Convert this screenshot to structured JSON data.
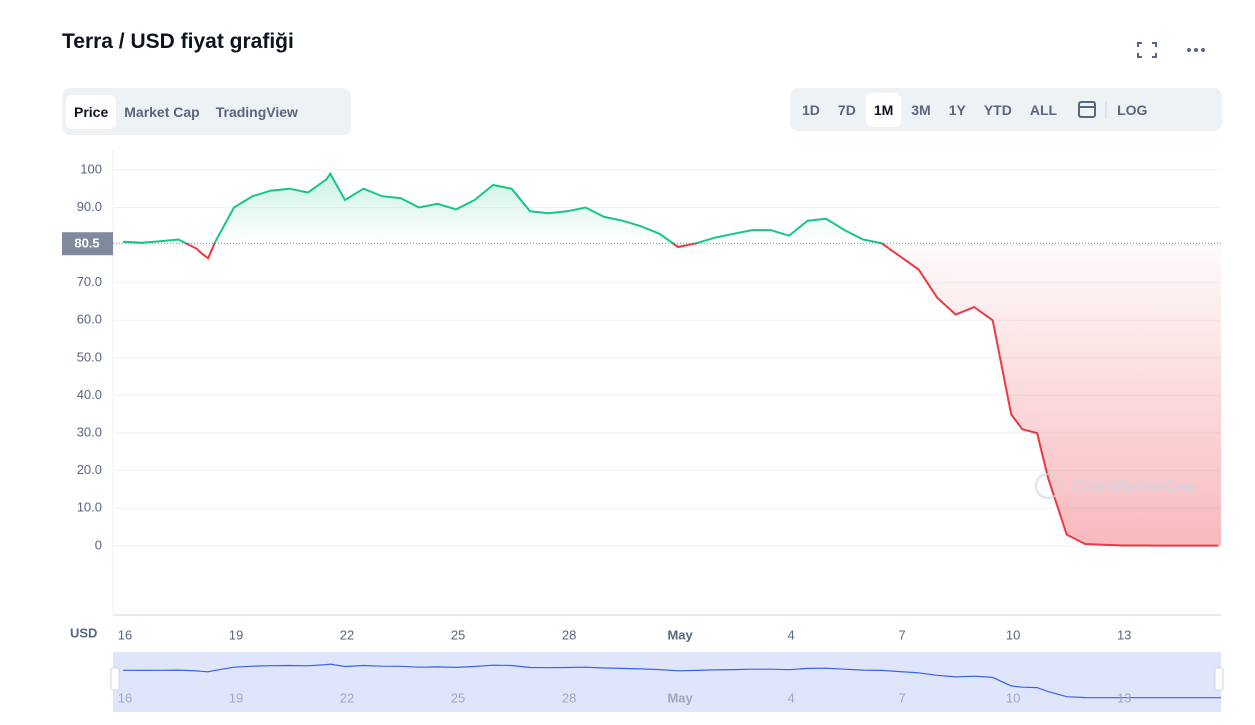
{
  "ui": {
    "title": "Terra / USD fiyat grafiği",
    "tabs": [
      "Price",
      "Market Cap",
      "TradingView"
    ],
    "ranges": [
      "1D",
      "7D",
      "1M",
      "3M",
      "1Y",
      "YTD",
      "ALL"
    ],
    "active_range": "1M",
    "log_button": "LOG",
    "currency": "USD",
    "watermark": "CoinMarketCap"
  },
  "chart_data": {
    "type": "line",
    "reference": 80.5,
    "color_up": "#16c784",
    "color_down": "#ea3943",
    "x": [
      0,
      0.5,
      1,
      1.5,
      2,
      2.1,
      2.3,
      2.5,
      3,
      3.5,
      4,
      4.5,
      5,
      5.5,
      5.6,
      6,
      6.5,
      7,
      7.5,
      8,
      8.5,
      9,
      9.5,
      10,
      10.5,
      11,
      11.5,
      12,
      12.5,
      13,
      13.5,
      14,
      14.5,
      15,
      15.5,
      16,
      16.5,
      17,
      17.5,
      18,
      18.5,
      19,
      19.5,
      20,
      20.5,
      21,
      21.5,
      22,
      22.5,
      23,
      23.5,
      24,
      24.3,
      24.7,
      25,
      25.5,
      26,
      27,
      28,
      29.6
    ],
    "values": [
      80.9,
      80.6,
      81,
      81.5,
      79,
      78,
      76.5,
      81,
      90,
      93,
      94.5,
      95,
      94,
      97.5,
      99,
      92,
      95,
      93,
      92.5,
      90,
      91,
      89.5,
      92,
      96,
      95,
      89,
      88.5,
      89,
      90,
      87.5,
      86.5,
      85,
      83,
      79.5,
      80.5,
      82,
      83,
      84,
      84,
      82.5,
      86.5,
      87,
      84,
      81.5,
      80.5,
      77,
      73.5,
      66,
      61.5,
      63.5,
      60,
      35,
      31,
      30,
      18,
      3,
      0.5,
      0.1,
      0.05,
      0.05
    ],
    "xlim": [
      -0.27,
      29.67
    ],
    "xticks": [
      {
        "value": 0,
        "label": "16"
      },
      {
        "value": 3,
        "label": "19"
      },
      {
        "value": 6,
        "label": "22"
      },
      {
        "value": 9,
        "label": "25"
      },
      {
        "value": 12,
        "label": "28"
      },
      {
        "value": 15,
        "label": "May"
      },
      {
        "value": 18,
        "label": "4"
      },
      {
        "value": 21,
        "label": "7"
      },
      {
        "value": 24,
        "label": "10"
      },
      {
        "value": 27,
        "label": "13"
      }
    ],
    "ylim": [
      -18.4,
      105.3
    ],
    "yticks": [
      0,
      {
        "value": 10,
        "label": "10.0"
      },
      {
        "value": 20,
        "label": "20.0"
      },
      {
        "value": 30,
        "label": "30.0"
      },
      {
        "value": 40,
        "label": "40.0"
      },
      {
        "value": 50,
        "label": "50.0"
      },
      {
        "value": 60,
        "label": "60.0"
      },
      {
        "value": 70,
        "label": "70.0"
      },
      {
        "value": 80,
        "label": "80.0"
      },
      {
        "value": 90,
        "label": "90.0"
      },
      100
    ],
    "grid": true
  }
}
